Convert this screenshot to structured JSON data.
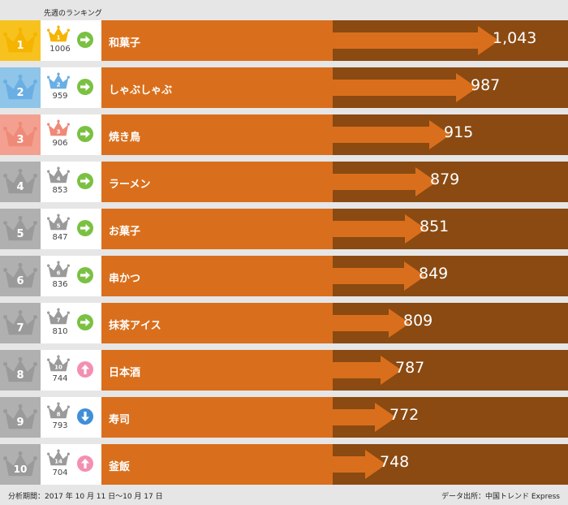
{
  "header": {
    "prev_week_label": "先週のランキング"
  },
  "colors": {
    "gold": "#f7c21d",
    "blue": "#8ec5e8",
    "pink": "#f4a090",
    "gray": "#b0b0b0",
    "crown_gold": "#f5b400",
    "crown_blue": "#6aaee3",
    "crown_pink": "#ef8a78",
    "crown_gray": "#9a9a9a",
    "bar": "#d96f1c",
    "bar_dark": "#8a4a12",
    "trend_same": "#7ac142",
    "trend_up": "#f48fb1",
    "trend_down": "#3f8fd8"
  },
  "chart_data": {
    "type": "bar",
    "categories": [
      "和菓子",
      "しゃぶしゃぶ",
      "焼き鳥",
      "ラーメン",
      "お菓子",
      "串かつ",
      "抹茶アイス",
      "日本酒",
      "寿司",
      "釜飯"
    ],
    "values": [
      1043,
      987,
      915,
      879,
      851,
      849,
      809,
      787,
      772,
      748
    ],
    "value_labels": [
      "1,043",
      "987",
      "915",
      "879",
      "851",
      "849",
      "809",
      "787",
      "772",
      "748"
    ],
    "ranks": [
      "1",
      "2",
      "3",
      "4",
      "5",
      "6",
      "7",
      "8",
      "9",
      "10"
    ],
    "prev_ranks": [
      "1",
      "2",
      "3",
      "4",
      "5",
      "6",
      "7",
      "10",
      "8",
      "14"
    ],
    "prev_values": [
      "1006",
      "959",
      "906",
      "853",
      "847",
      "836",
      "810",
      "744",
      "793",
      "704"
    ],
    "trends": [
      "same",
      "same",
      "same",
      "same",
      "same",
      "same",
      "same",
      "up",
      "down",
      "up"
    ],
    "rank_colors": [
      "gold",
      "blue",
      "pink",
      "gray",
      "gray",
      "gray",
      "gray",
      "gray",
      "gray",
      "gray"
    ]
  },
  "footer": {
    "period": "分析期間：2017 年 10 月 11 日〜10 月 17 日",
    "source": "データ出所：中国トレンド Express"
  }
}
